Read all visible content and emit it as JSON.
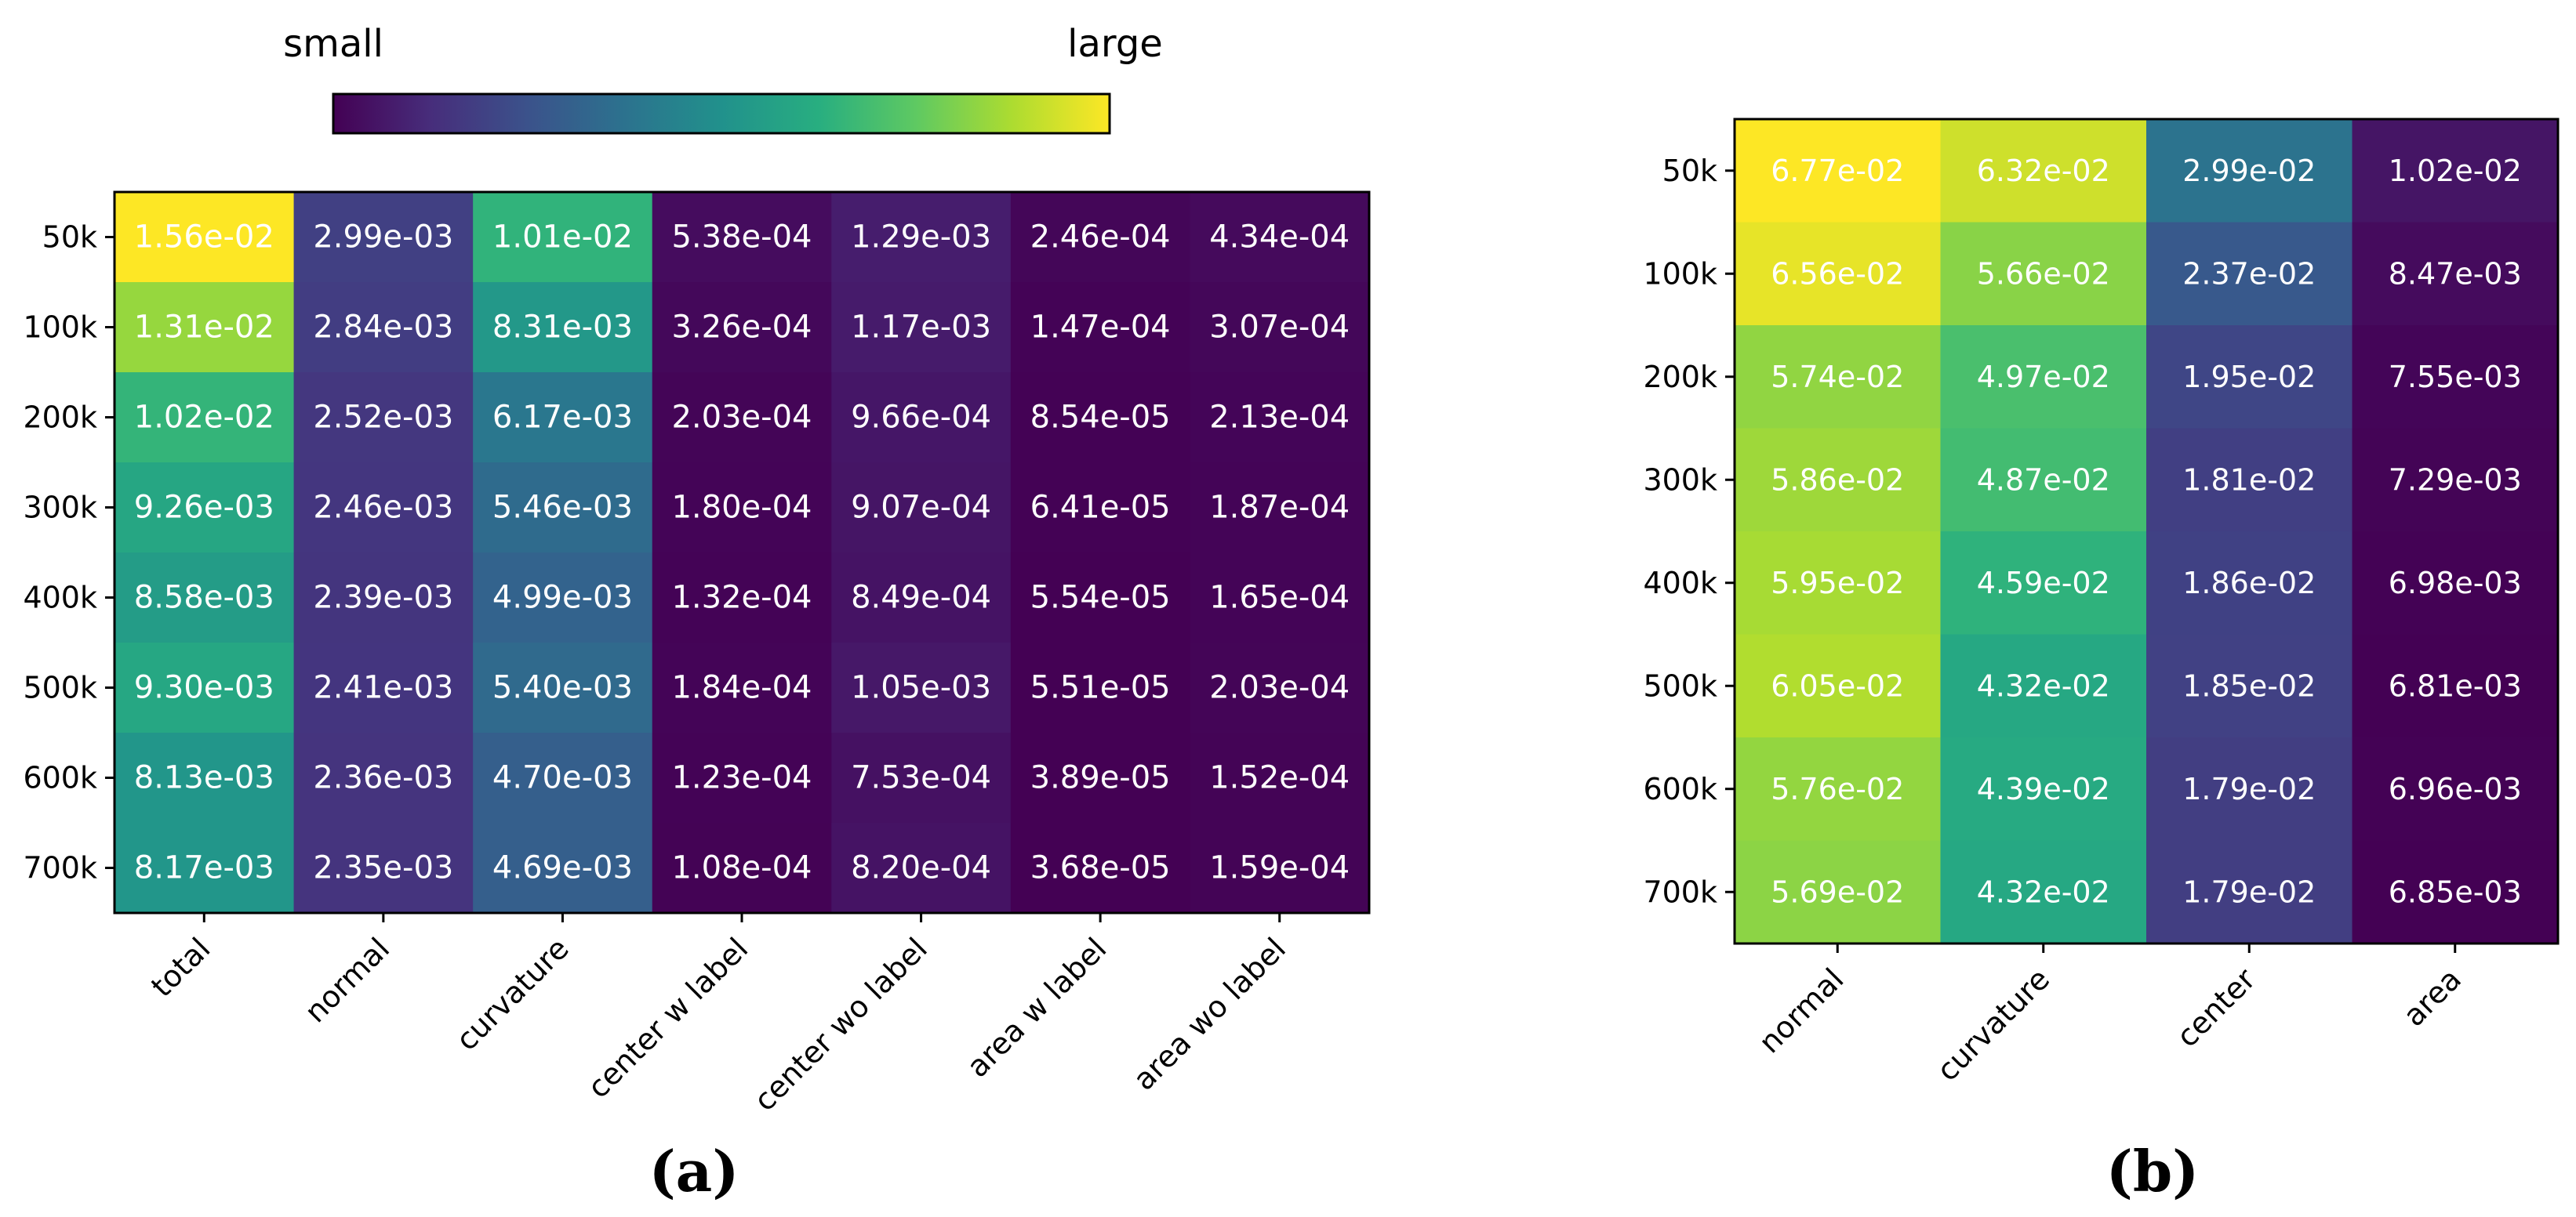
{
  "chart_data": [
    {
      "type": "heatmap",
      "caption": "(a)",
      "colorbar": {
        "min_label": "small",
        "max_label": "large",
        "colormap": "viridis"
      },
      "rows": [
        "50k",
        "100k",
        "200k",
        "300k",
        "400k",
        "500k",
        "600k",
        "700k"
      ],
      "columns": [
        "total",
        "normal",
        "curvature",
        "center w label",
        "center wo label",
        "area w label",
        "area wo label"
      ],
      "values": [
        [
          0.0156,
          0.00299,
          0.0101,
          0.000538,
          0.00129,
          0.000246,
          0.000434
        ],
        [
          0.0131,
          0.00284,
          0.00831,
          0.000326,
          0.00117,
          0.000147,
          0.000307
        ],
        [
          0.0102,
          0.00252,
          0.00617,
          0.000203,
          0.000966,
          8.54e-05,
          0.000213
        ],
        [
          0.00926,
          0.00246,
          0.00546,
          0.00018,
          0.000907,
          6.41e-05,
          0.000187
        ],
        [
          0.00858,
          0.00239,
          0.00499,
          0.000132,
          0.000849,
          5.54e-05,
          0.000165
        ],
        [
          0.0093,
          0.00241,
          0.0054,
          0.000184,
          0.00105,
          5.51e-05,
          0.000203
        ],
        [
          0.00813,
          0.00236,
          0.0047,
          0.000123,
          0.000753,
          3.89e-05,
          0.000152
        ],
        [
          0.00817,
          0.00235,
          0.00469,
          0.000108,
          0.00082,
          3.68e-05,
          0.000159
        ]
      ],
      "value_labels": [
        [
          "1.56e-02",
          "2.99e-03",
          "1.01e-02",
          "5.38e-04",
          "1.29e-03",
          "2.46e-04",
          "4.34e-04"
        ],
        [
          "1.31e-02",
          "2.84e-03",
          "8.31e-03",
          "3.26e-04",
          "1.17e-03",
          "1.47e-04",
          "3.07e-04"
        ],
        [
          "1.02e-02",
          "2.52e-03",
          "6.17e-03",
          "2.03e-04",
          "9.66e-04",
          "8.54e-05",
          "2.13e-04"
        ],
        [
          "9.26e-03",
          "2.46e-03",
          "5.46e-03",
          "1.80e-04",
          "9.07e-04",
          "6.41e-05",
          "1.87e-04"
        ],
        [
          "8.58e-03",
          "2.39e-03",
          "4.99e-03",
          "1.32e-04",
          "8.49e-04",
          "5.54e-05",
          "1.65e-04"
        ],
        [
          "9.30e-03",
          "2.41e-03",
          "5.40e-03",
          "1.84e-04",
          "1.05e-03",
          "5.51e-05",
          "2.03e-04"
        ],
        [
          "8.13e-03",
          "2.36e-03",
          "4.70e-03",
          "1.23e-04",
          "7.53e-04",
          "3.89e-05",
          "1.52e-04"
        ],
        [
          "8.17e-03",
          "2.35e-03",
          "4.69e-03",
          "1.08e-04",
          "8.20e-04",
          "3.68e-05",
          "1.59e-04"
        ]
      ]
    },
    {
      "type": "heatmap",
      "caption": "(b)",
      "colormap": "viridis",
      "rows": [
        "50k",
        "100k",
        "200k",
        "300k",
        "400k",
        "500k",
        "600k",
        "700k"
      ],
      "columns": [
        "normal",
        "curvature",
        "center",
        "area"
      ],
      "values": [
        [
          0.0677,
          0.0632,
          0.0299,
          0.0102
        ],
        [
          0.0656,
          0.0566,
          0.0237,
          0.00847
        ],
        [
          0.0574,
          0.0497,
          0.0195,
          0.00755
        ],
        [
          0.0586,
          0.0487,
          0.0181,
          0.00729
        ],
        [
          0.0595,
          0.0459,
          0.0186,
          0.00698
        ],
        [
          0.0605,
          0.0432,
          0.0185,
          0.00681
        ],
        [
          0.0576,
          0.0439,
          0.0179,
          0.00696
        ],
        [
          0.0569,
          0.0432,
          0.0179,
          0.00685
        ]
      ],
      "value_labels": [
        [
          "6.77e-02",
          "6.32e-02",
          "2.99e-02",
          "1.02e-02"
        ],
        [
          "6.56e-02",
          "5.66e-02",
          "2.37e-02",
          "8.47e-03"
        ],
        [
          "5.74e-02",
          "4.97e-02",
          "1.95e-02",
          "7.55e-03"
        ],
        [
          "5.86e-02",
          "4.87e-02",
          "1.81e-02",
          "7.29e-03"
        ],
        [
          "5.95e-02",
          "4.59e-02",
          "1.86e-02",
          "6.98e-03"
        ],
        [
          "6.05e-02",
          "4.32e-02",
          "1.85e-02",
          "6.81e-03"
        ],
        [
          "5.76e-02",
          "4.39e-02",
          "1.79e-02",
          "6.96e-03"
        ],
        [
          "5.69e-02",
          "4.32e-02",
          "1.79e-02",
          "6.85e-03"
        ]
      ]
    }
  ]
}
